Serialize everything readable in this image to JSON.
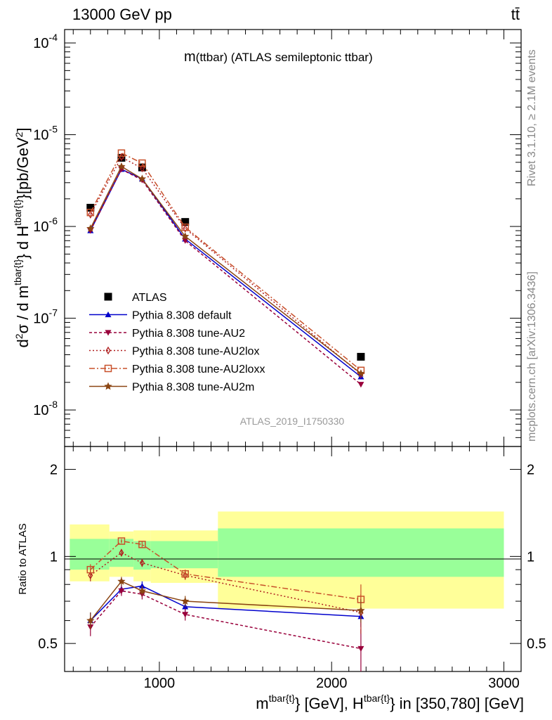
{
  "header": {
    "energy": "13000 GeV pp",
    "process": "tt̄",
    "title_m": "m",
    "title_rest": "(ttbar) (ATLAS semileptonic ttbar)",
    "analysis_id": "ATLAS_2019_I1750330",
    "side_top": "Rivet 3.1.10, ≥ 2.1M events",
    "side_bottom": "mcplots.cern.ch [arXiv:1306.3436]"
  },
  "axes": {
    "ylabel_main": "d²σ / d m^tbar{t} d H_T^tbar{t} [pb/GeV²]",
    "ylabel_ratio": "Ratio to ATLAS",
    "xlabel": "m^tbar{t} [GeV], H_T^tbar{t} in [350,780] [GeV]",
    "x_ticks": [
      "1000",
      "2000",
      "3000"
    ],
    "y_ticks_main": [
      "10^-8",
      "10^-7",
      "10^-6",
      "10^-5",
      "10^-4"
    ],
    "y_ticks_ratio": [
      "0.5",
      "1",
      "2"
    ]
  },
  "chart_data": {
    "type": "line",
    "x_range": [
      450,
      3100
    ],
    "y_scale": "log",
    "y_range": [
      4e-09,
      0.00014
    ],
    "ratio_range": [
      0.4,
      2.4
    ],
    "x": [
      600,
      780,
      900,
      1150,
      2170
    ],
    "band_edges": [
      480,
      710,
      850,
      950,
      1340,
      3000
    ],
    "ratio_band_inner": [
      [
        0.9,
        1.15
      ],
      [
        0.92,
        1.15
      ],
      [
        0.9,
        1.13
      ],
      [
        0.91,
        1.13
      ],
      [
        0.85,
        1.25
      ]
    ],
    "ratio_band_outer": [
      [
        0.82,
        1.29
      ],
      [
        0.85,
        1.22
      ],
      [
        0.82,
        1.23
      ],
      [
        0.81,
        1.23
      ],
      [
        0.66,
        1.43
      ]
    ],
    "series": [
      {
        "name": "ATLAS",
        "color": "#000000",
        "marker": "square",
        "dash": "none",
        "values": [
          1.6e-06,
          5.6e-06,
          4.4e-06,
          1.12e-06,
          3.8e-08
        ]
      },
      {
        "name": "Pythia 8.308 default",
        "color": "#0000cc",
        "marker": "triangle-up",
        "dash": "solid",
        "values": [
          9e-07,
          4.2e-06,
          3.3e-06,
          7.3e-07,
          2.3e-08
        ],
        "ratio": [
          0.6,
          0.77,
          0.79,
          0.67,
          0.62
        ],
        "ratio_err": [
          0.04,
          0.03,
          0.03,
          0.03,
          0.05
        ]
      },
      {
        "name": "Pythia 8.308 tune-AU2",
        "color": "#99003b",
        "marker": "triangle-down",
        "dash": "4,3",
        "values": [
          9e-07,
          4.2e-06,
          3.2e-06,
          7e-07,
          1.9e-08
        ],
        "ratio": [
          0.57,
          0.76,
          0.74,
          0.63,
          0.48
        ],
        "ratio_err": [
          0.04,
          0.03,
          0.03,
          0.03,
          0.08
        ]
      },
      {
        "name": "Pythia 8.308 tune-AU2lox",
        "color": "#b02020",
        "marker": "diamond-open",
        "dash": "2,3",
        "values": [
          1.35e-06,
          5.7e-06,
          4.3e-06,
          9.5e-07,
          2.45e-08
        ],
        "ratio": [
          0.86,
          1.03,
          0.95,
          0.86,
          0.64
        ],
        "ratio_err": [
          0.04,
          0.03,
          0.03,
          0.03,
          0.1
        ]
      },
      {
        "name": "Pythia 8.308 tune-AU2loxx",
        "color": "#c8502a",
        "marker": "square-open",
        "dash": "8,3,2,3",
        "values": [
          1.42e-06,
          6.3e-06,
          4.9e-06,
          9.8e-07,
          2.7e-08
        ],
        "ratio": [
          0.9,
          1.13,
          1.1,
          0.87,
          0.71
        ],
        "ratio_err": [
          0.04,
          0.02,
          0.03,
          0.03,
          0.09
        ]
      },
      {
        "name": "Pythia 8.308 tune-AU2m",
        "color": "#8b4513",
        "marker": "star",
        "dash": "solid",
        "values": [
          9.5e-07,
          4.5e-06,
          3.3e-06,
          7.8e-07,
          2.5e-08
        ],
        "ratio": [
          0.6,
          0.82,
          0.76,
          0.7,
          0.65
        ],
        "ratio_err": [
          0.04,
          0.03,
          0.03,
          0.03,
          0.06
        ]
      }
    ]
  }
}
